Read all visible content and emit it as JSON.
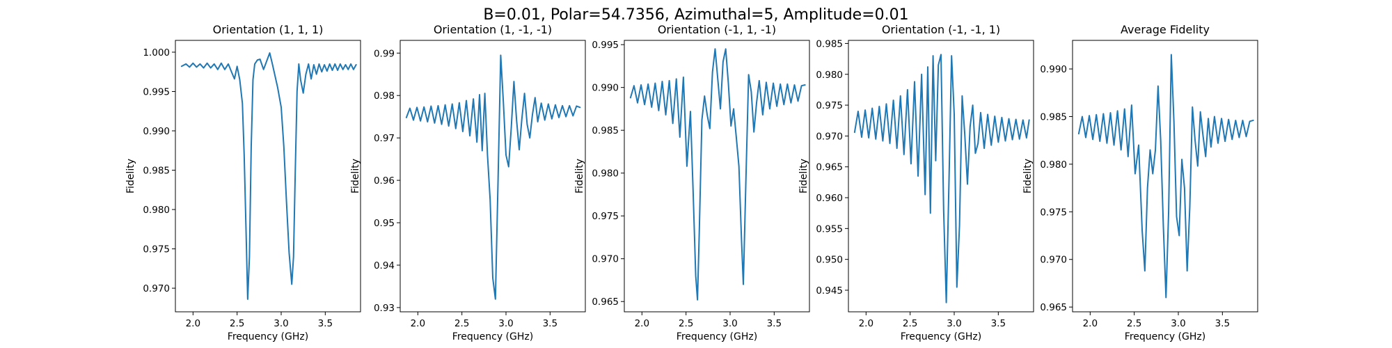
{
  "figure": {
    "suptitle": "B=0.01, Polar=54.7356, Azimuthal=5, Amplitude=0.01"
  },
  "chart_data": [
    {
      "type": "line",
      "title": "Orientation (1, 1, 1)",
      "xlabel": "Frequency (GHz)",
      "ylabel": "Fidelity",
      "xlim": [
        1.8,
        3.9
      ],
      "ylim": [
        0.967,
        1.0015
      ],
      "xticks": [
        2.0,
        2.5,
        3.0,
        3.5
      ],
      "xtick_labels": [
        "2.0",
        "2.5",
        "3.0",
        "3.5"
      ],
      "yticks": [
        0.97,
        0.975,
        0.98,
        0.985,
        0.99,
        0.995,
        1.0
      ],
      "ytick_labels": [
        "0.970",
        "0.975",
        "0.980",
        "0.985",
        "0.990",
        "0.995",
        "1.000"
      ],
      "grid": false,
      "series": [
        {
          "color": "#1f77b4",
          "x": [
            1.87,
            1.92,
            1.96,
            2.0,
            2.04,
            2.08,
            2.12,
            2.16,
            2.2,
            2.24,
            2.28,
            2.32,
            2.36,
            2.4,
            2.44,
            2.47,
            2.5,
            2.53,
            2.56,
            2.58,
            2.6,
            2.62,
            2.64,
            2.66,
            2.68,
            2.7,
            2.73,
            2.76,
            2.8,
            2.84,
            2.87,
            2.9,
            2.93,
            2.96,
            3.0,
            3.03,
            3.06,
            3.09,
            3.12,
            3.14,
            3.16,
            3.18,
            3.2,
            3.22,
            3.25,
            3.28,
            3.31,
            3.34,
            3.37,
            3.4,
            3.43,
            3.46,
            3.49,
            3.52,
            3.55,
            3.58,
            3.61,
            3.64,
            3.67,
            3.7,
            3.73,
            3.76,
            3.79,
            3.82,
            3.85
          ],
          "y": [
            0.9982,
            0.9985,
            0.9981,
            0.9986,
            0.9981,
            0.9985,
            0.998,
            0.9986,
            0.998,
            0.9985,
            0.9978,
            0.9986,
            0.9978,
            0.9985,
            0.9974,
            0.9966,
            0.9982,
            0.9965,
            0.9935,
            0.987,
            0.978,
            0.9686,
            0.974,
            0.988,
            0.9965,
            0.9985,
            0.999,
            0.9991,
            0.9978,
            0.999,
            0.9999,
            0.9985,
            0.997,
            0.9955,
            0.993,
            0.988,
            0.981,
            0.9745,
            0.9705,
            0.974,
            0.985,
            0.995,
            0.9985,
            0.9965,
            0.9948,
            0.9972,
            0.9985,
            0.9966,
            0.9984,
            0.9972,
            0.9985,
            0.9975,
            0.9984,
            0.9976,
            0.9985,
            0.9977,
            0.9985,
            0.9977,
            0.9985,
            0.9978,
            0.9984,
            0.9978,
            0.9985,
            0.9978,
            0.9984
          ]
        }
      ]
    },
    {
      "type": "line",
      "title": "Orientation (1, -1, -1)",
      "xlabel": "Frequency (GHz)",
      "ylabel": "Fidelity",
      "xlim": [
        1.8,
        3.9
      ],
      "ylim": [
        0.929,
        0.993
      ],
      "xticks": [
        2.0,
        2.5,
        3.0,
        3.5
      ],
      "xtick_labels": [
        "2.0",
        "2.5",
        "3.0",
        "3.5"
      ],
      "yticks": [
        0.93,
        0.94,
        0.95,
        0.96,
        0.97,
        0.98,
        0.99
      ],
      "ytick_labels": [
        "0.93",
        "0.94",
        "0.95",
        "0.96",
        "0.97",
        "0.98",
        "0.99"
      ],
      "grid": false,
      "series": [
        {
          "color": "#1f77b4",
          "x": [
            1.87,
            1.91,
            1.95,
            1.99,
            2.03,
            2.07,
            2.11,
            2.15,
            2.19,
            2.23,
            2.27,
            2.31,
            2.35,
            2.39,
            2.43,
            2.47,
            2.51,
            2.55,
            2.59,
            2.63,
            2.67,
            2.7,
            2.73,
            2.76,
            2.79,
            2.82,
            2.85,
            2.88,
            2.91,
            2.94,
            2.97,
            3.0,
            3.03,
            3.06,
            3.09,
            3.12,
            3.15,
            3.18,
            3.21,
            3.24,
            3.27,
            3.3,
            3.33,
            3.36,
            3.4,
            3.44,
            3.48,
            3.52,
            3.56,
            3.6,
            3.64,
            3.68,
            3.72,
            3.76,
            3.8,
            3.84
          ],
          "y": [
            0.9748,
            0.977,
            0.9742,
            0.9772,
            0.974,
            0.9773,
            0.9738,
            0.9775,
            0.9735,
            0.9776,
            0.9732,
            0.9778,
            0.9728,
            0.978,
            0.9722,
            0.9783,
            0.9715,
            0.9788,
            0.9705,
            0.9792,
            0.969,
            0.9802,
            0.967,
            0.9805,
            0.966,
            0.9555,
            0.937,
            0.932,
            0.96,
            0.9895,
            0.9785,
            0.966,
            0.9632,
            0.9725,
            0.9833,
            0.9742,
            0.9672,
            0.9745,
            0.9805,
            0.9732,
            0.97,
            0.9755,
            0.9795,
            0.9738,
            0.9782,
            0.9742,
            0.978,
            0.9745,
            0.9778,
            0.9748,
            0.9776,
            0.975,
            0.9776,
            0.9752,
            0.9775,
            0.9772
          ]
        }
      ]
    },
    {
      "type": "line",
      "title": "Orientation (-1, 1, -1)",
      "xlabel": "Frequency (GHz)",
      "ylabel": "Fidelity",
      "xlim": [
        1.8,
        3.9
      ],
      "ylim": [
        0.9638,
        0.9955
      ],
      "xticks": [
        2.0,
        2.5,
        3.0,
        3.5
      ],
      "xtick_labels": [
        "2.0",
        "2.5",
        "3.0",
        "3.5"
      ],
      "yticks": [
        0.965,
        0.97,
        0.975,
        0.98,
        0.985,
        0.99,
        0.995
      ],
      "ytick_labels": [
        "0.965",
        "0.970",
        "0.975",
        "0.980",
        "0.985",
        "0.990",
        "0.995"
      ],
      "grid": false,
      "series": [
        {
          "color": "#1f77b4",
          "x": [
            1.87,
            1.91,
            1.95,
            1.99,
            2.03,
            2.07,
            2.11,
            2.15,
            2.19,
            2.23,
            2.27,
            2.31,
            2.35,
            2.39,
            2.43,
            2.47,
            2.51,
            2.55,
            2.58,
            2.61,
            2.63,
            2.65,
            2.68,
            2.71,
            2.74,
            2.77,
            2.8,
            2.83,
            2.86,
            2.89,
            2.92,
            2.95,
            2.98,
            3.01,
            3.04,
            3.07,
            3.1,
            3.13,
            3.15,
            3.18,
            3.21,
            3.24,
            3.27,
            3.3,
            3.33,
            3.37,
            3.41,
            3.45,
            3.49,
            3.53,
            3.57,
            3.61,
            3.65,
            3.69,
            3.73,
            3.77,
            3.81,
            3.85
          ],
          "y": [
            0.9888,
            0.9902,
            0.9882,
            0.9903,
            0.988,
            0.9904,
            0.9877,
            0.9905,
            0.9873,
            0.9907,
            0.9868,
            0.9908,
            0.9858,
            0.991,
            0.9842,
            0.9912,
            0.9808,
            0.9872,
            0.978,
            0.968,
            0.9652,
            0.973,
            0.9862,
            0.989,
            0.9868,
            0.9852,
            0.9918,
            0.9945,
            0.991,
            0.9875,
            0.993,
            0.9945,
            0.9905,
            0.9855,
            0.9875,
            0.9842,
            0.9808,
            0.972,
            0.967,
            0.9795,
            0.9915,
            0.9895,
            0.9848,
            0.9882,
            0.9908,
            0.9868,
            0.9906,
            0.9875,
            0.9905,
            0.9878,
            0.9904,
            0.988,
            0.9904,
            0.9882,
            0.9903,
            0.9884,
            0.9902,
            0.9903
          ]
        }
      ]
    },
    {
      "type": "line",
      "title": "Orientation (-1, -1, 1)",
      "xlabel": "Frequency (GHz)",
      "ylabel": "Fidelity",
      "xlim": [
        1.8,
        3.9
      ],
      "ylim": [
        0.9415,
        0.9855
      ],
      "xticks": [
        2.0,
        2.5,
        3.0,
        3.5
      ],
      "xtick_labels": [
        "2.0",
        "2.5",
        "3.0",
        "3.5"
      ],
      "yticks": [
        0.945,
        0.95,
        0.955,
        0.96,
        0.965,
        0.97,
        0.975,
        0.98,
        0.985
      ],
      "ytick_labels": [
        "0.945",
        "0.950",
        "0.955",
        "0.960",
        "0.965",
        "0.970",
        "0.975",
        "0.980",
        "0.985"
      ],
      "grid": false,
      "series": [
        {
          "color": "#1f77b4",
          "x": [
            1.87,
            1.91,
            1.95,
            1.99,
            2.03,
            2.07,
            2.11,
            2.15,
            2.19,
            2.23,
            2.27,
            2.31,
            2.35,
            2.39,
            2.43,
            2.47,
            2.51,
            2.55,
            2.59,
            2.63,
            2.67,
            2.7,
            2.73,
            2.76,
            2.79,
            2.82,
            2.85,
            2.88,
            2.91,
            2.94,
            2.97,
            3.0,
            3.03,
            3.06,
            3.09,
            3.12,
            3.15,
            3.18,
            3.21,
            3.24,
            3.27,
            3.3,
            3.34,
            3.38,
            3.42,
            3.46,
            3.5,
            3.54,
            3.58,
            3.62,
            3.66,
            3.7,
            3.74,
            3.78,
            3.82,
            3.85
          ],
          "y": [
            0.9706,
            0.974,
            0.9698,
            0.9742,
            0.9697,
            0.9745,
            0.9695,
            0.9748,
            0.9692,
            0.9752,
            0.9688,
            0.9758,
            0.968,
            0.9765,
            0.967,
            0.9775,
            0.9655,
            0.9788,
            0.9635,
            0.98,
            0.9605,
            0.9812,
            0.9575,
            0.983,
            0.966,
            0.9815,
            0.9832,
            0.958,
            0.943,
            0.9622,
            0.983,
            0.9735,
            0.9455,
            0.9555,
            0.9765,
            0.9702,
            0.9622,
            0.9715,
            0.975,
            0.9672,
            0.9688,
            0.9738,
            0.968,
            0.9735,
            0.9685,
            0.9732,
            0.969,
            0.973,
            0.9692,
            0.9728,
            0.9694,
            0.9727,
            0.9695,
            0.9726,
            0.9697,
            0.9726
          ]
        }
      ]
    },
    {
      "type": "line",
      "title": "Average Fidelity",
      "xlabel": "Frequency (GHz)",
      "ylabel": "Fidelity",
      "xlim": [
        1.8,
        3.9
      ],
      "ylim": [
        0.9645,
        0.993
      ],
      "xticks": [
        2.0,
        2.5,
        3.0,
        3.5
      ],
      "xtick_labels": [
        "2.0",
        "2.5",
        "3.0",
        "3.5"
      ],
      "yticks": [
        0.965,
        0.97,
        0.975,
        0.98,
        0.985,
        0.99
      ],
      "ytick_labels": [
        "0.965",
        "0.970",
        "0.975",
        "0.980",
        "0.985",
        "0.990"
      ],
      "grid": false,
      "series": [
        {
          "color": "#1f77b4",
          "x": [
            1.87,
            1.91,
            1.95,
            1.99,
            2.03,
            2.07,
            2.11,
            2.15,
            2.19,
            2.23,
            2.27,
            2.31,
            2.35,
            2.39,
            2.43,
            2.47,
            2.51,
            2.55,
            2.59,
            2.62,
            2.65,
            2.68,
            2.71,
            2.74,
            2.77,
            2.8,
            2.83,
            2.86,
            2.89,
            2.92,
            2.95,
            2.98,
            3.01,
            3.04,
            3.07,
            3.1,
            3.13,
            3.16,
            3.19,
            3.22,
            3.25,
            3.28,
            3.31,
            3.34,
            3.37,
            3.41,
            3.45,
            3.49,
            3.53,
            3.57,
            3.61,
            3.65,
            3.69,
            3.73,
            3.77,
            3.81,
            3.85
          ],
          "y": [
            0.9832,
            0.985,
            0.9828,
            0.9851,
            0.9826,
            0.9852,
            0.9824,
            0.9853,
            0.9822,
            0.9854,
            0.982,
            0.9856,
            0.9815,
            0.9858,
            0.9808,
            0.9862,
            0.979,
            0.982,
            0.973,
            0.9688,
            0.9775,
            0.9815,
            0.979,
            0.9815,
            0.9882,
            0.9825,
            0.9735,
            0.966,
            0.975,
            0.9915,
            0.9845,
            0.9745,
            0.9725,
            0.9805,
            0.9775,
            0.9688,
            0.9755,
            0.986,
            0.9825,
            0.9798,
            0.9855,
            0.983,
            0.9808,
            0.9848,
            0.9818,
            0.985,
            0.9822,
            0.9848,
            0.9824,
            0.9847,
            0.9826,
            0.9846,
            0.9828,
            0.9846,
            0.9829,
            0.9845,
            0.9846
          ]
        }
      ]
    }
  ]
}
